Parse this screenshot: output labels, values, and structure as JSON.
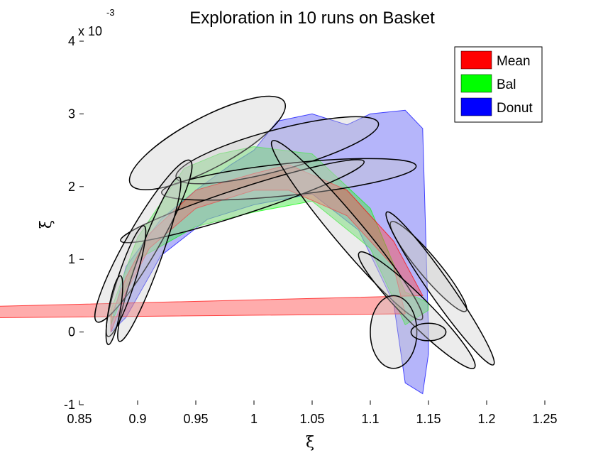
{
  "chart_data": {
    "type": "area",
    "title": "Exploration in 10 runs on Basket",
    "xlabel": "ξ",
    "ylabel": "ξ̇",
    "y_multiplier": "x 10",
    "y_multiplier_exp": "-3",
    "xlim": [
      0.85,
      1.25
    ],
    "ylim": [
      -1,
      4
    ],
    "xticks": [
      "0.85",
      "0.9",
      "0.95",
      "1",
      "1.05",
      "1.1",
      "1.15",
      "1.2",
      "1.25"
    ],
    "xtick_values": [
      0.85,
      0.9,
      0.95,
      1.0,
      1.05,
      1.1,
      1.15,
      1.2,
      1.25
    ],
    "yticks": [
      "-1",
      "0",
      "1",
      "2",
      "3",
      "4"
    ],
    "ytick_values": [
      -1,
      0,
      1,
      2,
      3,
      4
    ],
    "grid": false,
    "legend_position": "top-right",
    "series": [
      {
        "name": "Mean",
        "color": "#ff0000",
        "upper": [
          [
            0.877,
            0.2
          ],
          [
            0.89,
            0.75
          ],
          [
            0.91,
            1.35
          ],
          [
            0.95,
            1.95
          ],
          [
            1.0,
            2.18
          ],
          [
            1.03,
            2.3
          ],
          [
            1.08,
            1.95
          ],
          [
            1.12,
            1.25
          ],
          [
            1.13,
            0.95
          ],
          [
            1.145,
            0.5
          ]
        ],
        "lower": [
          [
            0.145,
            0.1
          ],
          [
            1.13,
            0.25
          ],
          [
            1.12,
            0.9
          ],
          [
            1.08,
            1.6
          ],
          [
            1.03,
            1.95
          ],
          [
            1.0,
            1.95
          ],
          [
            0.95,
            1.7
          ],
          [
            0.91,
            1.15
          ],
          [
            0.89,
            0.55
          ],
          [
            0.877,
            0.0
          ]
        ]
      },
      {
        "name": "Bal",
        "color": "#00ff00",
        "upper": [
          [
            0.877,
            0.3
          ],
          [
            0.9,
            1.3
          ],
          [
            0.94,
            2.25
          ],
          [
            0.97,
            2.45
          ],
          [
            1.0,
            2.55
          ],
          [
            1.05,
            2.45
          ],
          [
            1.1,
            1.7
          ],
          [
            1.13,
            0.55
          ],
          [
            1.15,
            0.4
          ]
        ],
        "lower": [
          [
            1.15,
            0.3
          ],
          [
            1.13,
            0.1
          ],
          [
            1.1,
            1.15
          ],
          [
            1.05,
            1.8
          ],
          [
            1.0,
            1.65
          ],
          [
            0.95,
            1.45
          ],
          [
            0.9,
            1.0
          ],
          [
            0.877,
            0.1
          ]
        ]
      },
      {
        "name": "Donut",
        "color": "#0000ff",
        "upper": [
          [
            0.877,
            0.1
          ],
          [
            0.89,
            0.9
          ],
          [
            0.92,
            1.55
          ],
          [
            0.95,
            1.95
          ],
          [
            0.98,
            2.3
          ],
          [
            1.0,
            2.5
          ],
          [
            1.02,
            2.9
          ],
          [
            1.05,
            3.0
          ],
          [
            1.08,
            2.85
          ],
          [
            1.1,
            3.0
          ],
          [
            1.13,
            3.05
          ],
          [
            1.145,
            2.8
          ],
          [
            1.15,
            0.0
          ]
        ],
        "lower": [
          [
            1.15,
            -0.3
          ],
          [
            1.145,
            -0.85
          ],
          [
            1.13,
            -0.7
          ],
          [
            1.12,
            0.4
          ],
          [
            1.09,
            1.4
          ],
          [
            1.05,
            1.9
          ],
          [
            1.0,
            1.75
          ],
          [
            0.96,
            1.55
          ],
          [
            0.92,
            1.05
          ],
          [
            0.89,
            0.2
          ],
          [
            0.877,
            0.0
          ]
        ]
      }
    ],
    "ellipses": [
      {
        "cx": 0.96,
        "cy": 2.6,
        "rx": 0.075,
        "ry": 0.35,
        "angle": -28
      },
      {
        "cx": 1.02,
        "cy": 2.5,
        "rx": 0.09,
        "ry": 0.28,
        "angle": -15
      },
      {
        "cx": 1.03,
        "cy": 2.1,
        "rx": 0.11,
        "ry": 0.22,
        "angle": -6
      },
      {
        "cx": 0.99,
        "cy": 1.8,
        "rx": 0.11,
        "ry": 0.18,
        "angle": -18
      },
      {
        "cx": 0.905,
        "cy": 1.25,
        "rx": 0.08,
        "ry": 0.22,
        "angle": -60
      },
      {
        "cx": 0.91,
        "cy": 1.0,
        "rx": 0.075,
        "ry": 0.15,
        "angle": -70
      },
      {
        "cx": 0.89,
        "cy": 0.7,
        "rx": 0.05,
        "ry": 0.12,
        "angle": -72
      },
      {
        "cx": 0.88,
        "cy": 0.3,
        "rx": 0.03,
        "ry": 0.08,
        "angle": -80
      },
      {
        "cx": 1.08,
        "cy": 1.4,
        "rx": 0.1,
        "ry": 0.2,
        "angle": 50
      },
      {
        "cx": 1.15,
        "cy": 0.9,
        "rx": 0.05,
        "ry": 0.14,
        "angle": 50
      },
      {
        "cx": 1.14,
        "cy": 0.3,
        "rx": 0.07,
        "ry": 0.18,
        "angle": 45
      },
      {
        "cx": 1.12,
        "cy": 0.0,
        "rx": 0.02,
        "ry": 0.5,
        "angle": 0
      },
      {
        "cx": 1.15,
        "cy": 0.0,
        "rx": 0.015,
        "ry": 0.12,
        "angle": 0
      },
      {
        "cx": 1.16,
        "cy": 0.6,
        "rx": 0.08,
        "ry": 0.15,
        "angle": 55
      }
    ]
  }
}
